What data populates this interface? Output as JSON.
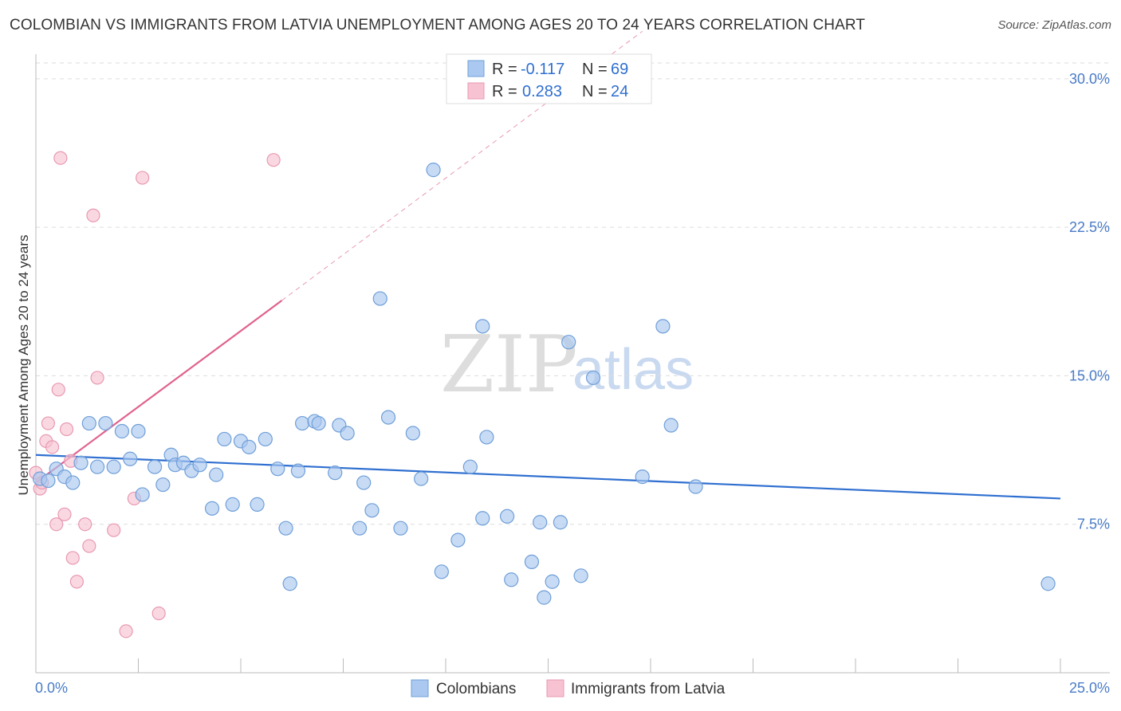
{
  "title": "COLOMBIAN VS IMMIGRANTS FROM LATVIA UNEMPLOYMENT AMONG AGES 20 TO 24 YEARS CORRELATION CHART",
  "source": "Source: ZipAtlas.com",
  "watermark": {
    "zip": "ZIP",
    "atlas": "atlas"
  },
  "colors": {
    "blue_fill": "#aac8f0",
    "blue_stroke": "#6f9fd8",
    "blue_line": "#2f6fd0",
    "pink_fill": "#f7c3d2",
    "pink_stroke": "#e899b2",
    "pink_line": "#e0628e",
    "grid": "#dddddd",
    "axis_text": "#4a7cc7"
  },
  "legend": {
    "rows": [
      {
        "r_label": "R =",
        "r_value": "-0.117",
        "n_label": "N =",
        "n_value": "69"
      },
      {
        "r_label": "R =",
        "r_value": "0.283",
        "n_label": "N =",
        "n_value": "24"
      }
    ]
  },
  "bottom_legend": [
    "Colombians",
    "Immigrants from Latvia"
  ],
  "chart_data": {
    "type": "scatter",
    "title": "COLOMBIAN VS IMMIGRANTS FROM LATVIA UNEMPLOYMENT AMONG AGES 20 TO 24 YEARS CORRELATION CHART",
    "xlabel": "",
    "ylabel": "Unemployment Among Ages 20 to 24 years",
    "xlim": [
      0,
      25
    ],
    "ylim": [
      0,
      30.8
    ],
    "x_tick_labels": [
      "0.0%",
      "25.0%"
    ],
    "y_ticks": [
      7.5,
      15.0,
      22.5,
      30.0
    ],
    "y_tick_labels": [
      "7.5%",
      "15.0%",
      "22.5%",
      "30.0%"
    ],
    "series": [
      {
        "name": "Colombians",
        "color": "#6f9fd8",
        "trend": {
          "x": [
            0,
            25
          ],
          "y": [
            11.0,
            8.8
          ]
        },
        "points": [
          [
            0.1,
            9.8
          ],
          [
            0.3,
            9.7
          ],
          [
            0.5,
            10.3
          ],
          [
            0.7,
            9.9
          ],
          [
            0.9,
            9.6
          ],
          [
            1.1,
            10.6
          ],
          [
            1.3,
            12.6
          ],
          [
            1.5,
            10.4
          ],
          [
            1.7,
            12.6
          ],
          [
            1.9,
            10.4
          ],
          [
            2.1,
            12.2
          ],
          [
            2.3,
            10.8
          ],
          [
            2.5,
            12.2
          ],
          [
            2.6,
            9.0
          ],
          [
            2.9,
            10.4
          ],
          [
            3.1,
            9.5
          ],
          [
            3.3,
            11.0
          ],
          [
            3.4,
            10.5
          ],
          [
            3.6,
            10.6
          ],
          [
            3.8,
            10.2
          ],
          [
            4.0,
            10.5
          ],
          [
            4.3,
            8.3
          ],
          [
            4.4,
            10.0
          ],
          [
            4.6,
            11.8
          ],
          [
            4.8,
            8.5
          ],
          [
            5.0,
            11.7
          ],
          [
            5.2,
            11.4
          ],
          [
            5.4,
            8.5
          ],
          [
            5.6,
            11.8
          ],
          [
            5.9,
            10.3
          ],
          [
            6.1,
            7.3
          ],
          [
            6.2,
            4.5
          ],
          [
            6.4,
            10.2
          ],
          [
            6.5,
            12.6
          ],
          [
            6.8,
            12.7
          ],
          [
            6.9,
            12.6
          ],
          [
            7.3,
            10.1
          ],
          [
            7.4,
            12.5
          ],
          [
            7.6,
            12.1
          ],
          [
            7.9,
            7.3
          ],
          [
            8.0,
            9.6
          ],
          [
            8.2,
            8.2
          ],
          [
            8.4,
            18.9
          ],
          [
            8.6,
            12.9
          ],
          [
            8.9,
            7.3
          ],
          [
            9.2,
            12.1
          ],
          [
            9.4,
            9.8
          ],
          [
            9.7,
            25.4
          ],
          [
            9.9,
            5.1
          ],
          [
            10.3,
            6.7
          ],
          [
            10.6,
            10.4
          ],
          [
            10.9,
            7.8
          ],
          [
            10.9,
            17.5
          ],
          [
            11.0,
            11.9
          ],
          [
            11.5,
            7.9
          ],
          [
            11.6,
            4.7
          ],
          [
            12.1,
            5.6
          ],
          [
            12.3,
            7.6
          ],
          [
            12.4,
            3.8
          ],
          [
            12.6,
            4.6
          ],
          [
            12.8,
            7.6
          ],
          [
            13.0,
            16.7
          ],
          [
            13.3,
            4.9
          ],
          [
            13.6,
            14.9
          ],
          [
            14.8,
            9.9
          ],
          [
            15.3,
            17.5
          ],
          [
            15.5,
            12.5
          ],
          [
            16.1,
            9.4
          ],
          [
            24.7,
            4.5
          ]
        ]
      },
      {
        "name": "Immigrants from Latvia",
        "color": "#e899b2",
        "trend": {
          "x": [
            0,
            6.0
          ],
          "y": [
            9.6,
            18.8
          ],
          "dashed_x": [
            6.0,
            14.8
          ],
          "dashed_y": [
            18.8,
            32.4
          ]
        },
        "points": [
          [
            0.0,
            10.1
          ],
          [
            0.1,
            9.3
          ],
          [
            0.15,
            9.6
          ],
          [
            0.25,
            11.7
          ],
          [
            0.3,
            12.6
          ],
          [
            0.4,
            11.4
          ],
          [
            0.5,
            7.5
          ],
          [
            0.55,
            14.3
          ],
          [
            0.6,
            26.0
          ],
          [
            0.7,
            8.0
          ],
          [
            0.75,
            12.3
          ],
          [
            0.85,
            10.7
          ],
          [
            0.9,
            5.8
          ],
          [
            1.0,
            4.6
          ],
          [
            1.2,
            7.5
          ],
          [
            1.3,
            6.4
          ],
          [
            1.4,
            23.1
          ],
          [
            1.5,
            14.9
          ],
          [
            1.9,
            7.2
          ],
          [
            2.2,
            2.1
          ],
          [
            2.4,
            8.8
          ],
          [
            2.6,
            25.0
          ],
          [
            3.0,
            3.0
          ],
          [
            5.8,
            25.9
          ]
        ]
      }
    ]
  }
}
